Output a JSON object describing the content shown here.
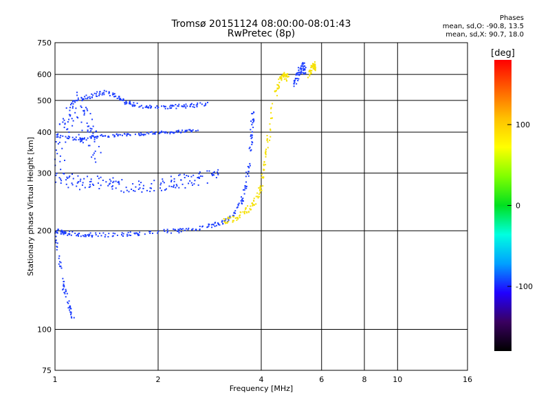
{
  "chart_data": {
    "type": "scatter",
    "title": "Tromsø 20151124 08:00:00-08:01:43",
    "subtitle": "RwPretec (8p)",
    "xlabel": "Frequency [MHz]",
    "ylabel": "Stationary phase Virtual Height [km]",
    "x_scale": "log",
    "y_scale": "log",
    "xlim": [
      1,
      16
    ],
    "ylim": [
      75,
      750
    ],
    "x_ticks": [
      "1",
      "2",
      "4",
      "6",
      "8",
      "10",
      "16"
    ],
    "y_ticks": [
      "75",
      "100",
      "200",
      "300",
      "400",
      "500",
      "600",
      "750"
    ],
    "grid": true,
    "phase_stats": {
      "heading": "Phases",
      "o_mode": "mean, sd,O: -90.8, 13.5",
      "x_mode": "mean, sd,X: 90.7, 18.0"
    },
    "colorbar": {
      "label": "[deg]",
      "ticks": [
        "100",
        "0",
        "-100"
      ],
      "tick_values": [
        100,
        0,
        -100
      ],
      "range": [
        -180,
        180
      ],
      "colors": [
        "#000000",
        "#3a0060",
        "#2000ff",
        "#00a0ff",
        "#00ffe0",
        "#00e020",
        "#80ff00",
        "#ffff00",
        "#ffc000",
        "#ff6000",
        "#ff0000"
      ]
    },
    "series": [
      {
        "name": "O",
        "color": "#1a3cff",
        "traces": [
          {
            "f": [
              1.0,
              1.05,
              1.1,
              1.2,
              1.3,
              1.5,
              1.7,
              2.0,
              2.3,
              2.6,
              2.9,
              3.1,
              3.3,
              3.5,
              3.6,
              3.7,
              3.75,
              3.8
            ],
            "h": [
              200,
              198,
              196,
              195,
              194,
              195,
              196,
              198,
              200,
              203,
              208,
              213,
              222,
              245,
              275,
              320,
              400,
              470
            ],
            "spread": 0.03
          },
          {
            "f": [
              1.0,
              1.1,
              1.2,
              1.3,
              1.45,
              1.6,
              1.8,
              2.0,
              2.2,
              2.4,
              2.6
            ],
            "h": [
              390,
              385,
              380,
              388,
              390,
              392,
              395,
              398,
              400,
              402,
              405
            ],
            "spread": 0.02
          },
          {
            "f": [
              1.1,
              1.2,
              1.3,
              1.4,
              1.5,
              1.6,
              1.7,
              1.9,
              2.1,
              2.3,
              2.5,
              2.8
            ],
            "h": [
              490,
              505,
              520,
              530,
              515,
              495,
              485,
              475,
              475,
              480,
              482,
              490
            ],
            "spread": 0.03
          },
          {
            "f": [
              1.0,
              1.1,
              1.2,
              1.35,
              1.5,
              1.7,
              1.9,
              2.1,
              2.3,
              2.5,
              2.7,
              3.0
            ],
            "h": [
              290,
              285,
              280,
              278,
              276,
              275,
              276,
              278,
              282,
              287,
              290,
              295
            ],
            "spread": 0.1
          },
          {
            "f": [
              1.0,
              1.05,
              1.1,
              1.15,
              1.2,
              1.25,
              1.3,
              1.35
            ],
            "h": [
              350,
              380,
              420,
              460,
              440,
              400,
              360,
              330
            ],
            "spread": 0.35
          },
          {
            "f": [
              1.0,
              1.03,
              1.06,
              1.1,
              1.13
            ],
            "h": [
              195,
              160,
              135,
              118,
              110
            ],
            "spread": 0.04
          },
          {
            "f": [
              5.0,
              5.1,
              5.2,
              5.3,
              5.4
            ],
            "h": [
              560,
              590,
              620,
              640,
              600
            ],
            "spread": 0.06
          }
        ]
      },
      {
        "name": "X",
        "color": "#f5e000",
        "traces": [
          {
            "f": [
              3.1,
              3.3,
              3.5,
              3.7,
              3.9,
              4.0,
              4.1,
              4.2,
              4.3
            ],
            "h": [
              212,
              218,
              225,
              235,
              250,
              275,
              320,
              380,
              480
            ],
            "spread": 0.05
          },
          {
            "f": [
              4.4,
              4.5,
              4.6,
              4.7,
              4.8
            ],
            "h": [
              520,
              560,
              590,
              600,
              580
            ],
            "spread": 0.05
          },
          {
            "f": [
              5.5,
              5.6,
              5.7,
              5.8
            ],
            "h": [
              600,
              620,
              640,
              630
            ],
            "spread": 0.05
          }
        ]
      }
    ]
  }
}
